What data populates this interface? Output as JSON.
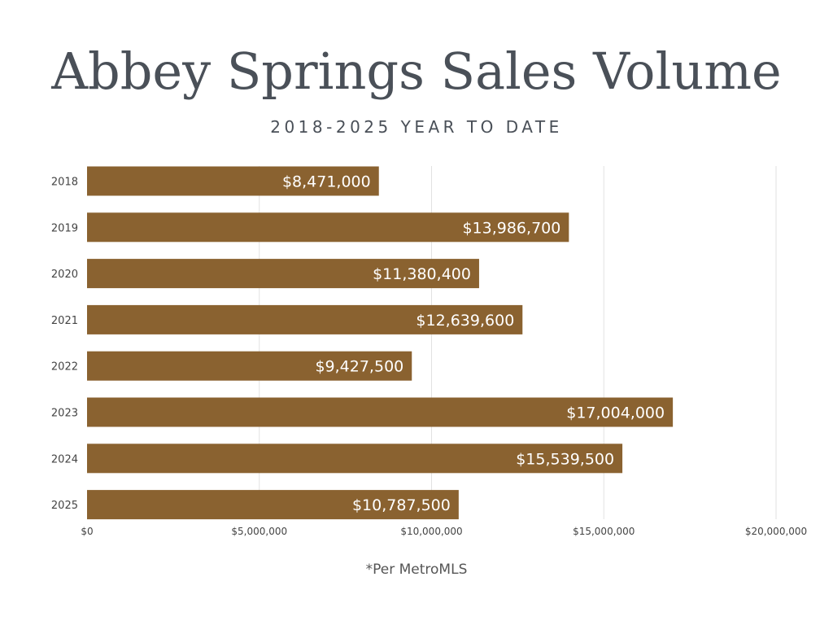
{
  "title": "Abbey Springs Sales Volume",
  "subtitle": "2018-2025 YEAR TO DATE",
  "footnote": "*Per MetroMLS",
  "colors": {
    "bar": "#8a6230",
    "bar_label": "#ffffff",
    "grid": "#e2e2e2",
    "text": "#4a5058",
    "axis_text": "#444444"
  },
  "chart_data": {
    "type": "bar",
    "orientation": "horizontal",
    "categories": [
      "2018",
      "2019",
      "2020",
      "2021",
      "2022",
      "2023",
      "2024",
      "2025"
    ],
    "values": [
      8471000,
      13986700,
      11380400,
      12639600,
      9427500,
      17004000,
      15539500,
      10787500
    ],
    "value_labels": [
      "$8,471,000",
      "$13,986,700",
      "$11,380,400",
      "$12,639,600",
      "$9,427,500",
      "$17,004,000",
      "$15,539,500",
      "$10,787,500"
    ],
    "title": "Abbey Springs Sales Volume",
    "subtitle": "2018-2025 YEAR TO DATE",
    "xlabel": "",
    "ylabel": "",
    "xlim": [
      0,
      20000000
    ],
    "xticks": [
      0,
      5000000,
      10000000,
      15000000,
      20000000
    ],
    "xtick_labels": [
      "$0",
      "$5,000,000",
      "$10,000,000",
      "$15,000,000",
      "$20,000,000"
    ],
    "grid": true,
    "legend": "none"
  }
}
